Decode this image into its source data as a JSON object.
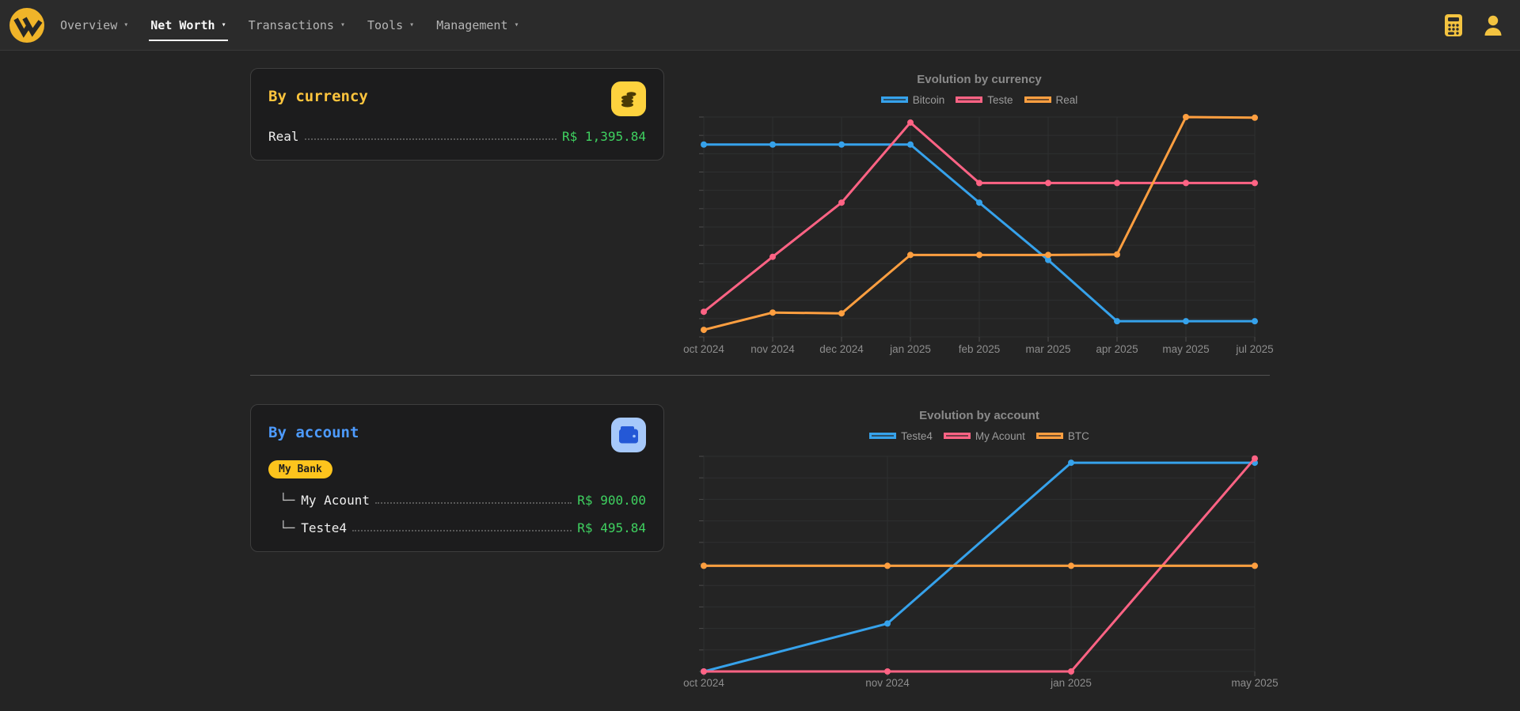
{
  "nav": {
    "caret": "▾",
    "items": [
      {
        "label": "Overview",
        "active": false
      },
      {
        "label": "Net Worth",
        "active": true
      },
      {
        "label": "Transactions",
        "active": false
      },
      {
        "label": "Tools",
        "active": false
      },
      {
        "label": "Management",
        "active": false
      }
    ],
    "right_icons": [
      "calculator-icon",
      "user-icon"
    ]
  },
  "cards": {
    "currency": {
      "title": "By currency",
      "icon": "coins-icon",
      "rows": [
        {
          "label": "Real",
          "value": "R$ 1,395.84"
        }
      ]
    },
    "account": {
      "title": "By account",
      "icon": "wallet-icon",
      "badge": "My Bank",
      "rows": [
        {
          "prefix": "└─",
          "label": "My Acount",
          "value": "R$ 900.00"
        },
        {
          "prefix": "└─",
          "label": "Teste4",
          "value": "R$ 495.84"
        }
      ]
    }
  },
  "colors": {
    "amber": "#fdc41d",
    "blue_accent": "#4d9bff",
    "value_green": "#3fd160",
    "chart_blue": "#36a2eb",
    "chart_pink": "#ff6384",
    "chart_orange": "#ff9f40"
  },
  "chart_data": [
    {
      "type": "line",
      "title": "Evolution by currency",
      "legend_position": "top",
      "grid": true,
      "y_tick_labels": false,
      "categories": [
        "oct 2024",
        "nov 2024",
        "dec 2024",
        "jan 2025",
        "feb 2025",
        "mar 2025",
        "apr 2025",
        "may 2025",
        "jul 2025"
      ],
      "series": [
        {
          "name": "Bitcoin",
          "color": "#36a2eb",
          "values": [
            1225,
            1225,
            1225,
            1225,
            855,
            490,
            100,
            100,
            100
          ]
        },
        {
          "name": "Teste",
          "color": "#ff6384",
          "values": [
            160,
            510,
            855,
            1365,
            980,
            980,
            980,
            980,
            980
          ]
        },
        {
          "name": "Real",
          "color": "#ff9f40",
          "values": [
            45,
            155,
            150,
            522,
            522,
            522,
            525,
            1400,
            1396
          ]
        }
      ],
      "ylim": [
        0,
        1400
      ]
    },
    {
      "type": "line",
      "title": "Evolution by account",
      "legend_position": "top",
      "grid": true,
      "y_tick_labels": false,
      "categories": [
        "oct 2024",
        "nov 2024",
        "jan 2025",
        "may 2025"
      ],
      "series": [
        {
          "name": "Teste4",
          "color": "#36a2eb",
          "values": [
            0,
            225,
            980,
            980
          ]
        },
        {
          "name": "My Acount",
          "color": "#ff6384",
          "values": [
            0,
            0,
            0,
            1000
          ]
        },
        {
          "name": "BTC",
          "color": "#ff9f40",
          "values": [
            496,
            496,
            496,
            496
          ]
        }
      ],
      "ylim": [
        0,
        1010
      ]
    }
  ]
}
